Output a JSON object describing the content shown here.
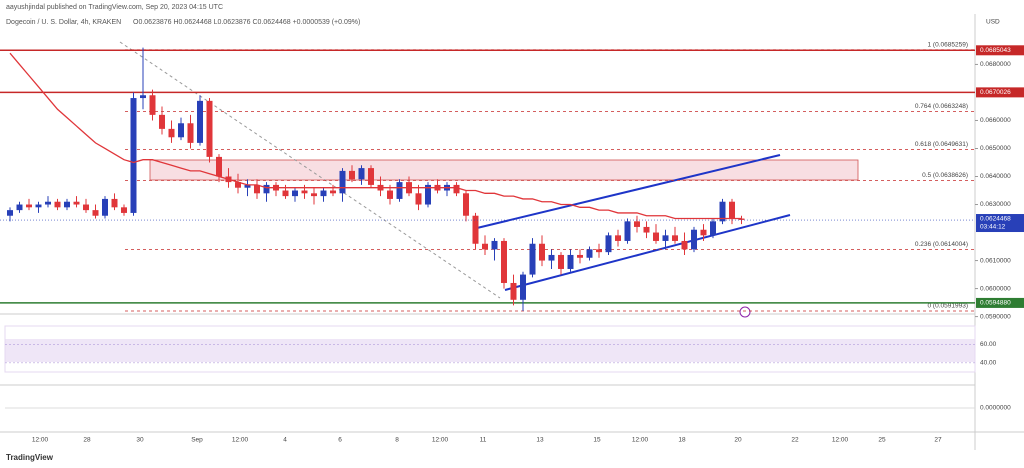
{
  "header": {
    "byline": "aayushjindal published on TradingView.com, Sep 20, 2023 04:15 UTC",
    "symbol": "Dogecoin / U. S. Dollar, 4h, KRAKEN",
    "ohlc": "O0.0623876 H0.0624468 L0.0623876 C0.0624468 +0.0000539 (+0.09%)",
    "currency": "USD",
    "countdown": "03:44:12"
  },
  "footer": {
    "brand": "TradingView"
  },
  "x_axis_labels": [
    "12:00",
    "28",
    "30",
    "Sep",
    "12:00",
    "4",
    "6",
    "8",
    "12:00",
    "11",
    "13",
    "15",
    "12:00",
    "18",
    "20",
    "22",
    "12:00",
    "25",
    "27"
  ],
  "chart_data": {
    "type": "candlestick",
    "up_color": "#2840b8",
    "down_color": "#e0363a",
    "ma_color": "#e0363a",
    "ylim": [
      0.0587,
      0.0698
    ],
    "yticks": [
      {
        "value": 0.059,
        "label": "0.0590000"
      },
      {
        "value": 0.06,
        "label": "0.0600000"
      },
      {
        "value": 0.061,
        "label": "0.0610000"
      },
      {
        "value": 0.063,
        "label": "0.0630000"
      },
      {
        "value": 0.064,
        "label": "0.0640000"
      },
      {
        "value": 0.065,
        "label": "0.0650000"
      },
      {
        "value": 0.066,
        "label": "0.0660000"
      },
      {
        "value": 0.068,
        "label": "0.0680000"
      }
    ],
    "levels": [
      {
        "value": 0.0685043,
        "color": "#c62828"
      },
      {
        "value": 0.0670026,
        "color": "#c62828"
      },
      {
        "value": 0.059488,
        "label": "0.0594880",
        "color": "#2e7d32"
      }
    ],
    "last_price": 0.0624468,
    "fib": [
      {
        "value": 0.0685259,
        "label": "1 (0.0685259)"
      },
      {
        "value": 0.0663248,
        "label": "0.764 (0.0663248)"
      },
      {
        "value": 0.0649631,
        "label": "0.618 (0.0649631)"
      },
      {
        "value": 0.0638626,
        "label": "0.5 (0.0638626)"
      },
      {
        "value": 0.0614004,
        "label": "0.236 (0.0614004)"
      },
      {
        "value": 0.0591993,
        "label": "0 (0.0591993)"
      }
    ],
    "rsi_ticks": [
      {
        "value": 60,
        "label": "60.00"
      },
      {
        "value": 40,
        "label": "40.00"
      }
    ],
    "macd_ticks": [
      {
        "value": 0,
        "label": "0.0000000"
      }
    ],
    "candles": [
      [
        0.0626,
        0.0629,
        0.0624,
        0.0628
      ],
      [
        0.0628,
        0.0631,
        0.0627,
        0.063
      ],
      [
        0.063,
        0.0632,
        0.0628,
        0.0629
      ],
      [
        0.0629,
        0.0631,
        0.0627,
        0.063
      ],
      [
        0.063,
        0.0633,
        0.0629,
        0.0631
      ],
      [
        0.0631,
        0.0632,
        0.0628,
        0.0629
      ],
      [
        0.0629,
        0.0632,
        0.0628,
        0.0631
      ],
      [
        0.0631,
        0.0633,
        0.0629,
        0.063
      ],
      [
        0.063,
        0.0632,
        0.0627,
        0.0628
      ],
      [
        0.0628,
        0.063,
        0.0625,
        0.0626
      ],
      [
        0.0626,
        0.0633,
        0.0625,
        0.0632
      ],
      [
        0.0632,
        0.0634,
        0.0628,
        0.0629
      ],
      [
        0.0629,
        0.063,
        0.0626,
        0.0627
      ],
      [
        0.0627,
        0.067,
        0.0626,
        0.0668
      ],
      [
        0.0668,
        0.0686,
        0.0664,
        0.0669
      ],
      [
        0.0669,
        0.0671,
        0.066,
        0.0662
      ],
      [
        0.0662,
        0.0665,
        0.0655,
        0.0657
      ],
      [
        0.0657,
        0.066,
        0.0652,
        0.0654
      ],
      [
        0.0654,
        0.0661,
        0.0653,
        0.0659
      ],
      [
        0.0659,
        0.0662,
        0.065,
        0.0652
      ],
      [
        0.0652,
        0.0669,
        0.0651,
        0.0667
      ],
      [
        0.0667,
        0.0668,
        0.0645,
        0.0647
      ],
      [
        0.0647,
        0.0648,
        0.0638,
        0.064
      ],
      [
        0.064,
        0.0643,
        0.0636,
        0.0638
      ],
      [
        0.0638,
        0.0641,
        0.0634,
        0.0636
      ],
      [
        0.0636,
        0.0639,
        0.0633,
        0.0637
      ],
      [
        0.0637,
        0.0639,
        0.0632,
        0.0634
      ],
      [
        0.0634,
        0.0638,
        0.0631,
        0.0637
      ],
      [
        0.0637,
        0.0638,
        0.0633,
        0.0635
      ],
      [
        0.0635,
        0.0637,
        0.0632,
        0.0633
      ],
      [
        0.0633,
        0.0636,
        0.0631,
        0.0635
      ],
      [
        0.0635,
        0.0637,
        0.0632,
        0.0634
      ],
      [
        0.0634,
        0.0636,
        0.063,
        0.0633
      ],
      [
        0.0633,
        0.0636,
        0.0631,
        0.0635
      ],
      [
        0.0635,
        0.0637,
        0.0633,
        0.0634
      ],
      [
        0.0634,
        0.0643,
        0.0631,
        0.0642
      ],
      [
        0.0642,
        0.0644,
        0.0638,
        0.0639
      ],
      [
        0.0639,
        0.0644,
        0.0637,
        0.0643
      ],
      [
        0.0643,
        0.0644,
        0.0636,
        0.0637
      ],
      [
        0.0637,
        0.064,
        0.0633,
        0.0635
      ],
      [
        0.0635,
        0.0637,
        0.063,
        0.0632
      ],
      [
        0.0632,
        0.0639,
        0.0631,
        0.0638
      ],
      [
        0.0638,
        0.064,
        0.0633,
        0.0634
      ],
      [
        0.0634,
        0.0637,
        0.0628,
        0.063
      ],
      [
        0.063,
        0.0638,
        0.0629,
        0.0637
      ],
      [
        0.0637,
        0.0639,
        0.0634,
        0.0635
      ],
      [
        0.0635,
        0.0638,
        0.0633,
        0.0637
      ],
      [
        0.0637,
        0.0638,
        0.0633,
        0.0634
      ],
      [
        0.0634,
        0.0635,
        0.0624,
        0.0626
      ],
      [
        0.0626,
        0.0627,
        0.0614,
        0.0616
      ],
      [
        0.0616,
        0.0619,
        0.0612,
        0.0614
      ],
      [
        0.0614,
        0.0618,
        0.061,
        0.0617
      ],
      [
        0.0617,
        0.0618,
        0.06,
        0.0602
      ],
      [
        0.0602,
        0.0605,
        0.0594,
        0.0596
      ],
      [
        0.0596,
        0.0606,
        0.0592,
        0.0605
      ],
      [
        0.0605,
        0.0618,
        0.0604,
        0.0616
      ],
      [
        0.0616,
        0.0619,
        0.0608,
        0.061
      ],
      [
        0.061,
        0.0614,
        0.0607,
        0.0612
      ],
      [
        0.0612,
        0.0613,
        0.0605,
        0.0607
      ],
      [
        0.0607,
        0.0614,
        0.0606,
        0.0612
      ],
      [
        0.0612,
        0.0614,
        0.0609,
        0.0611
      ],
      [
        0.0611,
        0.0615,
        0.061,
        0.0614
      ],
      [
        0.0614,
        0.0616,
        0.0611,
        0.0613
      ],
      [
        0.0613,
        0.062,
        0.0612,
        0.0619
      ],
      [
        0.0619,
        0.0621,
        0.0615,
        0.0617
      ],
      [
        0.0617,
        0.0625,
        0.0616,
        0.0624
      ],
      [
        0.0624,
        0.0626,
        0.062,
        0.0622
      ],
      [
        0.0622,
        0.0624,
        0.0618,
        0.062
      ],
      [
        0.062,
        0.0623,
        0.0616,
        0.0617
      ],
      [
        0.0617,
        0.0621,
        0.0614,
        0.0619
      ],
      [
        0.0619,
        0.0622,
        0.0616,
        0.0617
      ],
      [
        0.0617,
        0.062,
        0.0612,
        0.0614
      ],
      [
        0.0614,
        0.0622,
        0.0613,
        0.0621
      ],
      [
        0.0621,
        0.0623,
        0.0617,
        0.0619
      ],
      [
        0.0619,
        0.0625,
        0.0618,
        0.0624
      ],
      [
        0.0624,
        0.0632,
        0.0623,
        0.0631
      ],
      [
        0.0631,
        0.0632,
        0.0623,
        0.0625
      ],
      [
        0.0625,
        0.0626,
        0.0623,
        0.06245
      ]
    ],
    "ma": [
      0.0684,
      0.068,
      0.0676,
      0.0672,
      0.0668,
      0.0664,
      0.0661,
      0.0658,
      0.0655,
      0.0652,
      0.065,
      0.0648,
      0.0646,
      0.0645,
      0.0646,
      0.0646,
      0.0645,
      0.0644,
      0.0643,
      0.0642,
      0.0642,
      0.0641,
      0.064,
      0.0639,
      0.0638,
      0.0637,
      0.0637,
      0.0636,
      0.0636,
      0.0636,
      0.0636,
      0.0636,
      0.0636,
      0.0636,
      0.0636,
      0.0636,
      0.0636,
      0.0636,
      0.0636,
      0.0636,
      0.0636,
      0.0636,
      0.0636,
      0.0636,
      0.0636,
      0.0636,
      0.0636,
      0.0636,
      0.0635,
      0.0635,
      0.0634,
      0.0634,
      0.0633,
      0.0633,
      0.0632,
      0.0632,
      0.0631,
      0.0631,
      0.063,
      0.063,
      0.0629,
      0.0629,
      0.0628,
      0.0628,
      0.0627,
      0.0627,
      0.0627,
      0.0626,
      0.0626,
      0.0626,
      0.0625,
      0.0625,
      0.0625,
      0.0625,
      0.0625,
      0.0625,
      0.0625,
      0.0625
    ]
  }
}
